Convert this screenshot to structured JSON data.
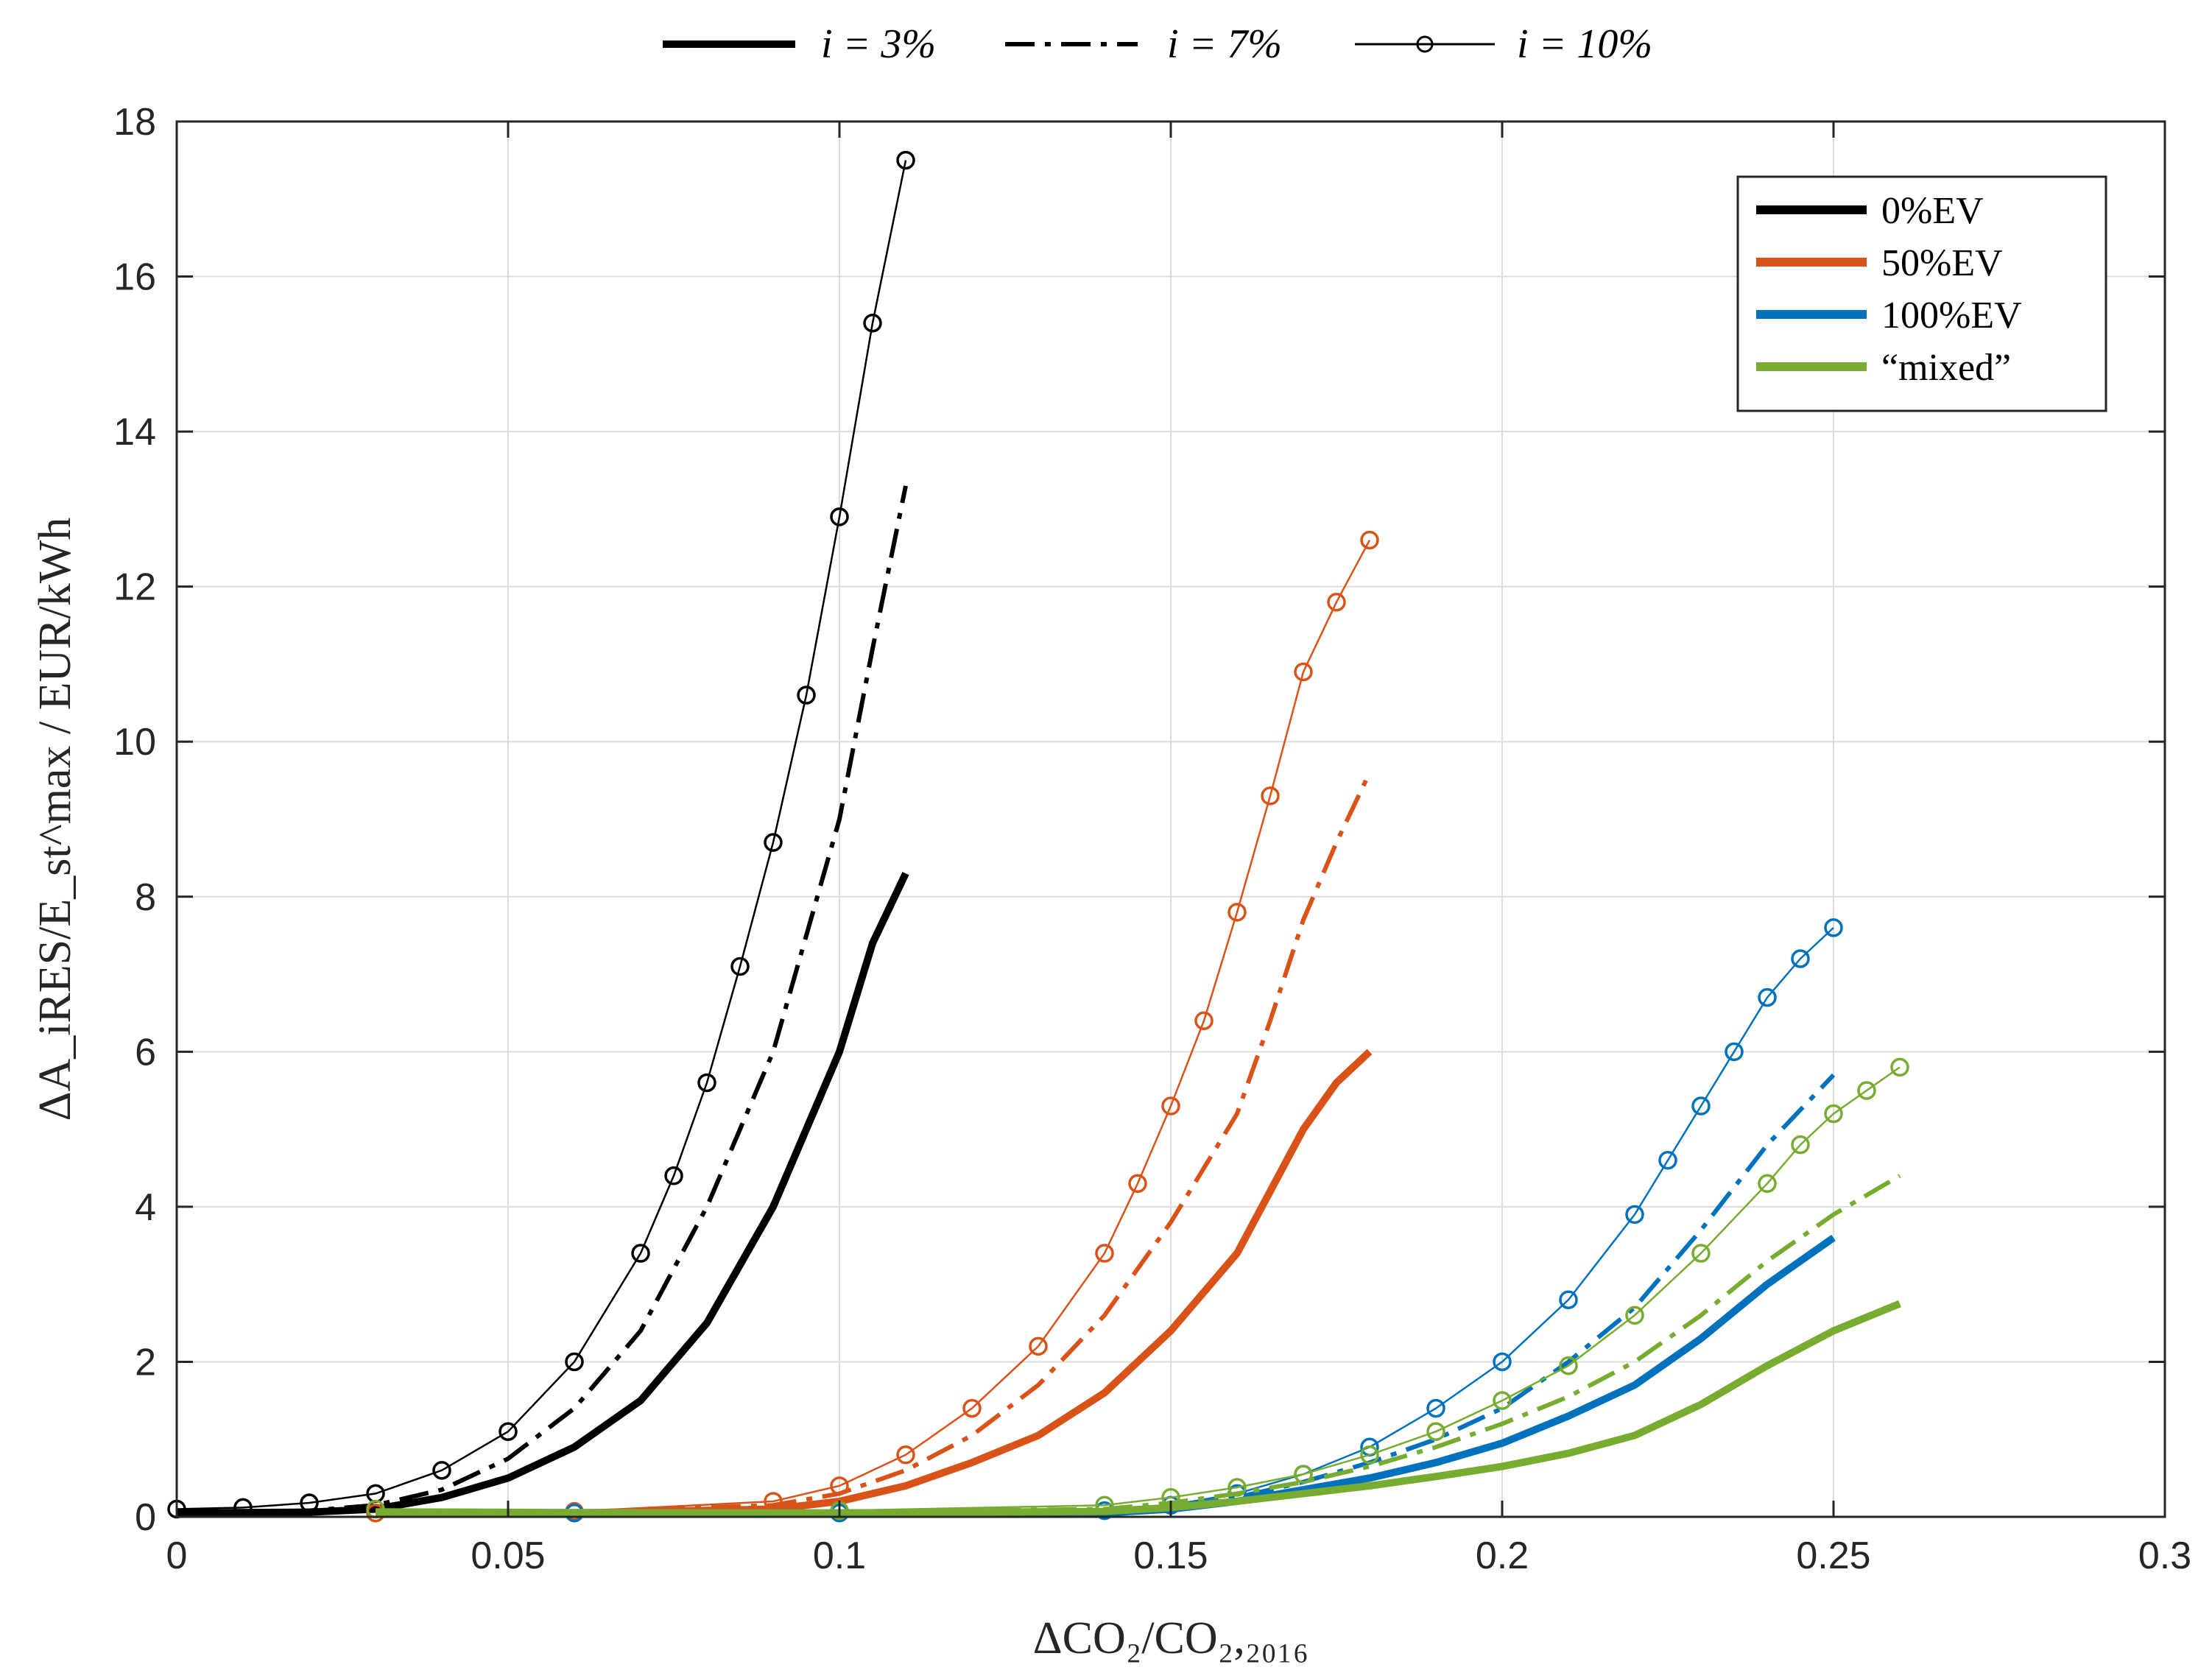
{
  "chart_data": {
    "type": "line",
    "title": "",
    "xlabel": "ΔCO₂/CO₂,₂₀₁₆",
    "ylabel": "ΔA_iRES/E_st^max / EUR/kWh",
    "xlim": [
      0,
      0.3
    ],
    "ylim": [
      0,
      18
    ],
    "grid": true,
    "x_ticks": [
      "0",
      "0.05",
      "0.1",
      "0.15",
      "0.2",
      "0.25",
      "0.3"
    ],
    "y_ticks": [
      "0",
      "2",
      "4",
      "6",
      "8",
      "10",
      "12",
      "14",
      "16",
      "18"
    ],
    "colors": {
      "0%EV": "#000000",
      "50%EV": "#d95319",
      "100%EV": "#0072bd",
      "mixed": "#77ac30"
    },
    "group_legend": {
      "position": "top-right",
      "entries": [
        "0%EV",
        "50%EV",
        "100%EV",
        "“mixed”"
      ]
    },
    "style_legend": {
      "position": "top-center",
      "entries": [
        {
          "label": "i = 3%",
          "style": "solid"
        },
        {
          "label": "i = 7%",
          "style": "dashdot"
        },
        {
          "label": "i = 10%",
          "style": "marker-circle"
        }
      ]
    },
    "series": [
      {
        "group": "0%EV",
        "rate": "3%",
        "style": "solid",
        "x": [
          0,
          0.02,
          0.03,
          0.04,
          0.05,
          0.06,
          0.07,
          0.08,
          0.09,
          0.1,
          0.105,
          0.11
        ],
        "y": [
          0.05,
          0.06,
          0.1,
          0.25,
          0.5,
          0.9,
          1.5,
          2.5,
          4.0,
          6.0,
          7.4,
          8.3
        ]
      },
      {
        "group": "0%EV",
        "rate": "7%",
        "style": "dashdot",
        "x": [
          0,
          0.02,
          0.03,
          0.04,
          0.05,
          0.06,
          0.07,
          0.08,
          0.09,
          0.1,
          0.105,
          0.11
        ],
        "y": [
          0.05,
          0.08,
          0.15,
          0.35,
          0.75,
          1.4,
          2.4,
          4.0,
          6.0,
          9.0,
          11.2,
          13.3
        ]
      },
      {
        "group": "0%EV",
        "rate": "10%",
        "style": "marker-circle",
        "x": [
          0,
          0.01,
          0.02,
          0.03,
          0.04,
          0.05,
          0.06,
          0.07,
          0.075,
          0.08,
          0.085,
          0.09,
          0.095,
          0.1,
          0.105,
          0.11
        ],
        "y": [
          0.1,
          0.12,
          0.18,
          0.3,
          0.6,
          1.1,
          2.0,
          3.4,
          4.4,
          5.6,
          7.1,
          8.7,
          10.6,
          12.9,
          15.4,
          17.5
        ]
      },
      {
        "group": "50%EV",
        "rate": "3%",
        "style": "solid",
        "x": [
          0.03,
          0.06,
          0.09,
          0.1,
          0.11,
          0.12,
          0.13,
          0.14,
          0.15,
          0.16,
          0.165,
          0.17,
          0.175,
          0.18
        ],
        "y": [
          0.05,
          0.05,
          0.1,
          0.2,
          0.4,
          0.7,
          1.05,
          1.6,
          2.4,
          3.4,
          4.2,
          5.0,
          5.6,
          6.0
        ]
      },
      {
        "group": "50%EV",
        "rate": "7%",
        "style": "dashdot",
        "x": [
          0.03,
          0.06,
          0.09,
          0.1,
          0.11,
          0.12,
          0.13,
          0.14,
          0.15,
          0.16,
          0.165,
          0.17,
          0.175,
          0.18
        ],
        "y": [
          0.05,
          0.06,
          0.15,
          0.3,
          0.6,
          1.05,
          1.7,
          2.6,
          3.8,
          5.2,
          6.4,
          7.7,
          8.7,
          9.6
        ]
      },
      {
        "group": "50%EV",
        "rate": "10%",
        "style": "marker-circle",
        "x": [
          0.03,
          0.06,
          0.09,
          0.1,
          0.11,
          0.12,
          0.13,
          0.14,
          0.145,
          0.15,
          0.155,
          0.16,
          0.165,
          0.17,
          0.175,
          0.18
        ],
        "y": [
          0.05,
          0.07,
          0.2,
          0.4,
          0.8,
          1.4,
          2.2,
          3.4,
          4.3,
          5.3,
          6.4,
          7.8,
          9.3,
          10.9,
          11.8,
          12.6
        ]
      },
      {
        "group": "100%EV",
        "rate": "3%",
        "style": "solid",
        "x": [
          0.06,
          0.1,
          0.14,
          0.15,
          0.16,
          0.17,
          0.18,
          0.19,
          0.2,
          0.21,
          0.22,
          0.23,
          0.24,
          0.25
        ],
        "y": [
          0.05,
          0.05,
          0.05,
          0.1,
          0.2,
          0.35,
          0.5,
          0.7,
          0.95,
          1.3,
          1.7,
          2.3,
          3.0,
          3.6
        ]
      },
      {
        "group": "100%EV",
        "rate": "7%",
        "style": "dashdot",
        "x": [
          0.06,
          0.1,
          0.14,
          0.15,
          0.16,
          0.17,
          0.18,
          0.19,
          0.2,
          0.21,
          0.22,
          0.23,
          0.24,
          0.25
        ],
        "y": [
          0.05,
          0.05,
          0.07,
          0.12,
          0.25,
          0.45,
          0.7,
          1.0,
          1.4,
          2.0,
          2.7,
          3.7,
          4.8,
          5.7
        ]
      },
      {
        "group": "100%EV",
        "rate": "10%",
        "style": "marker-circle",
        "x": [
          0.06,
          0.1,
          0.14,
          0.15,
          0.16,
          0.17,
          0.18,
          0.19,
          0.2,
          0.21,
          0.22,
          0.225,
          0.23,
          0.235,
          0.24,
          0.245,
          0.25
        ],
        "y": [
          0.05,
          0.05,
          0.08,
          0.15,
          0.3,
          0.55,
          0.9,
          1.4,
          2.0,
          2.8,
          3.9,
          4.6,
          5.3,
          6.0,
          6.7,
          7.2,
          7.6
        ]
      },
      {
        "group": "mixed",
        "rate": "3%",
        "style": "solid",
        "x": [
          0.03,
          0.1,
          0.14,
          0.15,
          0.16,
          0.17,
          0.18,
          0.19,
          0.2,
          0.21,
          0.22,
          0.23,
          0.24,
          0.25,
          0.26
        ],
        "y": [
          0.05,
          0.05,
          0.07,
          0.12,
          0.2,
          0.3,
          0.4,
          0.52,
          0.65,
          0.82,
          1.05,
          1.45,
          1.95,
          2.4,
          2.75
        ]
      },
      {
        "group": "mixed",
        "rate": "7%",
        "style": "dashdot",
        "x": [
          0.03,
          0.1,
          0.14,
          0.15,
          0.16,
          0.17,
          0.18,
          0.19,
          0.2,
          0.21,
          0.22,
          0.23,
          0.24,
          0.25,
          0.26
        ],
        "y": [
          0.05,
          0.06,
          0.1,
          0.18,
          0.3,
          0.45,
          0.65,
          0.9,
          1.2,
          1.55,
          2.0,
          2.6,
          3.3,
          3.9,
          4.4
        ]
      },
      {
        "group": "mixed",
        "rate": "10%",
        "style": "marker-circle",
        "x": [
          0.03,
          0.1,
          0.14,
          0.15,
          0.16,
          0.17,
          0.18,
          0.19,
          0.2,
          0.21,
          0.22,
          0.23,
          0.24,
          0.245,
          0.25,
          0.255,
          0.26
        ],
        "y": [
          0.1,
          0.08,
          0.15,
          0.25,
          0.38,
          0.55,
          0.8,
          1.1,
          1.5,
          1.95,
          2.6,
          3.4,
          4.3,
          4.8,
          5.2,
          5.5,
          5.8
        ]
      }
    ]
  }
}
